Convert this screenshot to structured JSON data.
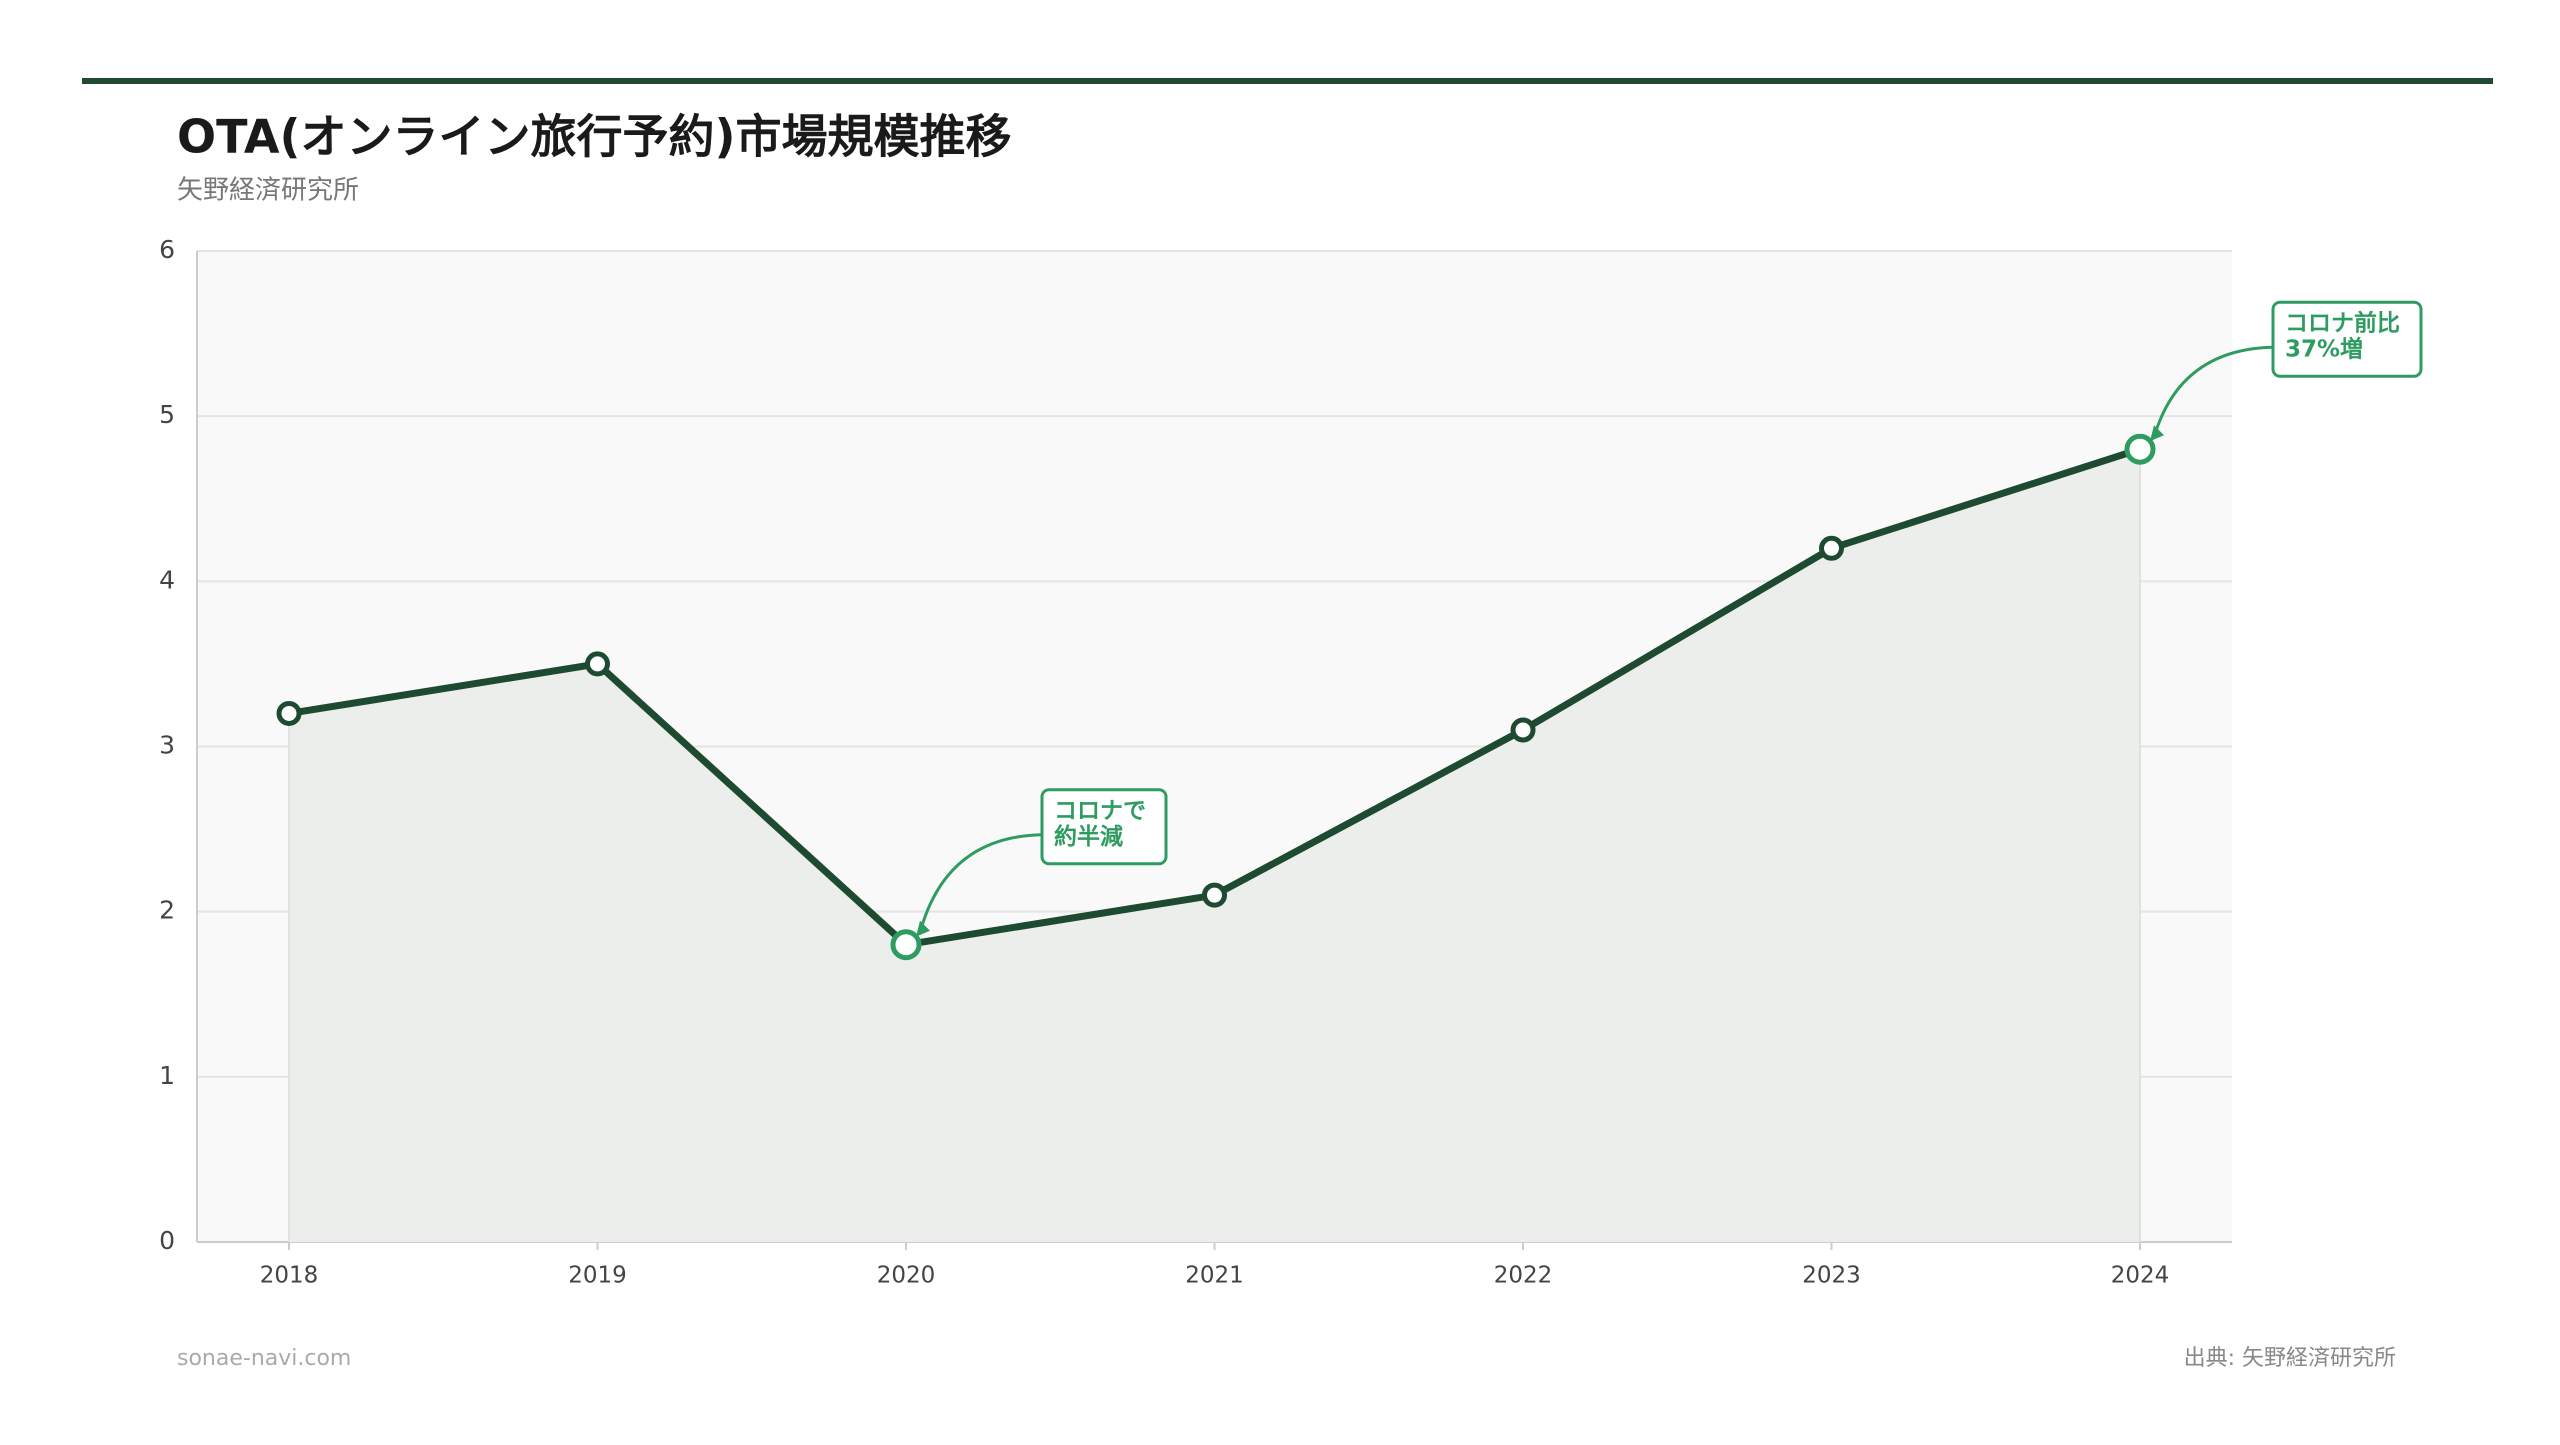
{
  "chart_data": {
    "type": "line",
    "title": "OTA(オンライン旅行予約)市場規模推移",
    "subtitle": "矢野経済研究所",
    "categories": [
      "2018",
      "2019",
      "2020",
      "2021",
      "2022",
      "2023",
      "2024"
    ],
    "series": [
      {
        "color": "#1e4a32",
        "values": [
          3.2,
          3.5,
          1.8,
          2.1,
          3.1,
          4.2,
          4.8
        ]
      }
    ],
    "ylim": [
      0,
      6
    ],
    "yticks": [
      0,
      1,
      2,
      3,
      4,
      5,
      6
    ],
    "grid": true,
    "area": true,
    "highlight_color": "#2e9c60",
    "annotations": [
      {
        "index": 2,
        "lines": [
          "コロナで",
          "約半減"
        ]
      },
      {
        "index": 6,
        "lines": [
          "コロナ前比",
          "37%増"
        ]
      }
    ],
    "footer_left": "sonae-navi.com",
    "source": "出典: 矢野経済研究所"
  }
}
